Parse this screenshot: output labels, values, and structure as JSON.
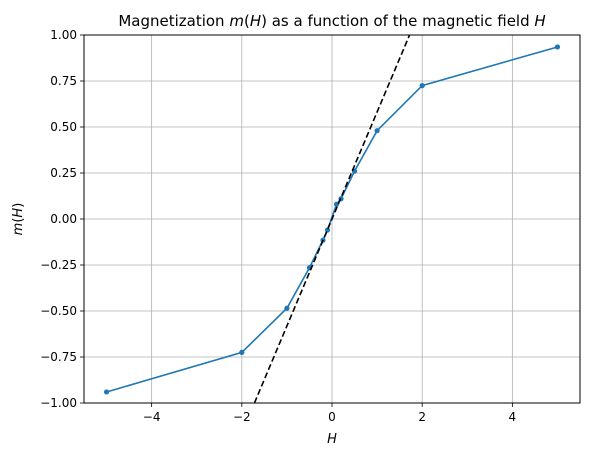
{
  "chart_data": {
    "type": "line",
    "title": "Magnetization m(H) as a function of the magnetic field H",
    "xlabel": "H",
    "ylabel": "m(H)",
    "xlim": [
      -5.5,
      5.5
    ],
    "ylim": [
      -1.0,
      1.0
    ],
    "xticks": [
      -4,
      -2,
      0,
      2,
      4
    ],
    "xtick_labels": [
      "−4",
      "−2",
      "0",
      "2",
      "4"
    ],
    "yticks": [
      -1.0,
      -0.75,
      -0.5,
      -0.25,
      0.0,
      0.25,
      0.5,
      0.75,
      1.0
    ],
    "ytick_labels": [
      "−1.00",
      "−0.75",
      "−0.50",
      "−0.25",
      "0.00",
      "0.25",
      "0.50",
      "0.75",
      "1.00"
    ],
    "grid": true,
    "series": [
      {
        "color": "#1f77b4",
        "style": "solid",
        "marker": "dot",
        "x": [
          -5,
          -2,
          -1,
          -0.5,
          -0.2,
          -0.1,
          0.1,
          0.2,
          0.5,
          1,
          2,
          5
        ],
        "y": [
          -0.94,
          -0.725,
          -0.485,
          -0.265,
          -0.115,
          -0.06,
          0.08,
          0.11,
          0.26,
          0.48,
          0.725,
          0.935
        ]
      },
      {
        "color": "#000000",
        "style": "dashed",
        "marker": "none",
        "x": [
          -1.72,
          1.72
        ],
        "y": [
          -1.0,
          1.0
        ]
      }
    ]
  }
}
